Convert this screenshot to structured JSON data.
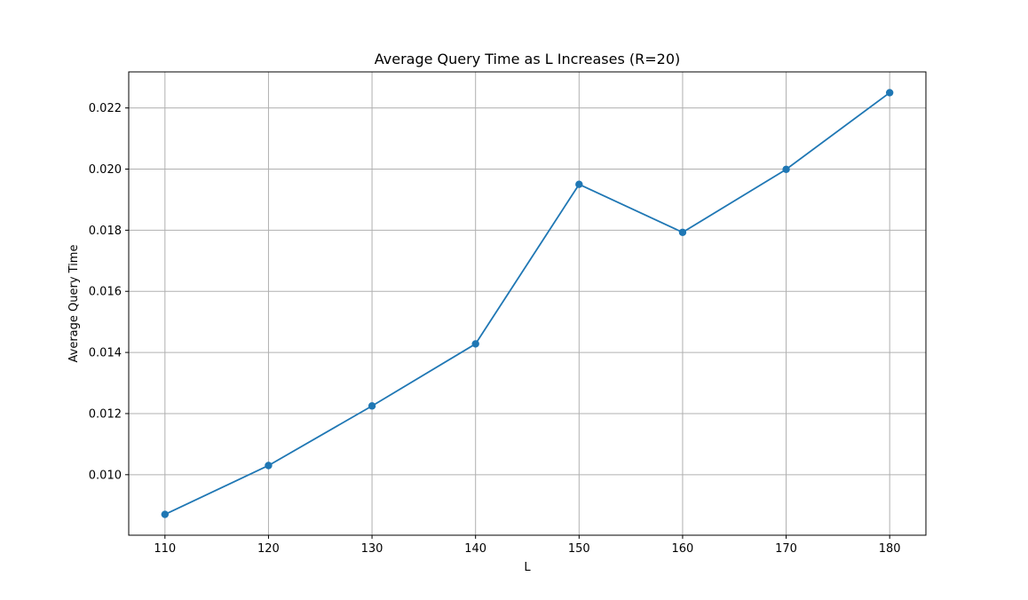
{
  "chart_data": {
    "type": "line",
    "title": "Average Query Time as L Increases (R=20)",
    "xlabel": "L",
    "ylabel": "Average Query Time",
    "x": [
      110,
      120,
      130,
      140,
      150,
      160,
      170,
      180
    ],
    "series": [
      {
        "values": [
          0.0087,
          0.0103,
          0.01225,
          0.01428,
          0.0195,
          0.01793,
          0.01999,
          0.0225
        ],
        "color": "#1f77b4"
      }
    ],
    "xticks": [
      110,
      120,
      130,
      140,
      150,
      160,
      170,
      180
    ],
    "yticks": [
      "0.010",
      "0.012",
      "0.014",
      "0.016",
      "0.018",
      "0.020",
      "0.022"
    ],
    "xlim": [
      106.5,
      183.5
    ],
    "ylim": [
      0.00802,
      0.02318
    ],
    "grid": true,
    "marker": "circle"
  }
}
